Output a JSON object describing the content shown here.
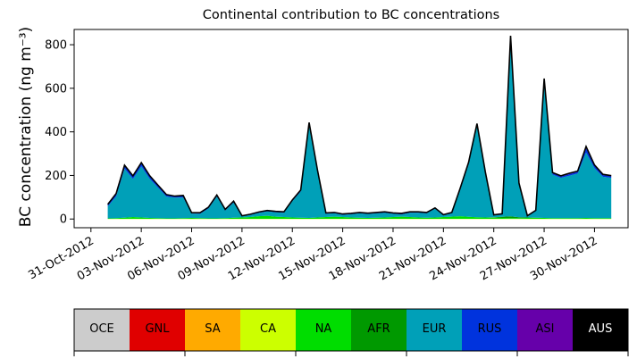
{
  "chart_data": {
    "type": "area",
    "title": "Continental contribution to BC concentrations",
    "ylabel": "BC concentration (ng m⁻³)",
    "xlabel": "",
    "x_range": [
      "2012-10-30",
      "2012-12-02"
    ],
    "ylim": [
      -40,
      870
    ],
    "yticks": [
      0,
      200,
      400,
      600,
      800
    ],
    "xticks": [
      {
        "date": "2012-10-31",
        "label": "31-Oct-2012"
      },
      {
        "date": "2012-11-03",
        "label": "03-Nov-2012"
      },
      {
        "date": "2012-11-06",
        "label": "06-Nov-2012"
      },
      {
        "date": "2012-11-09",
        "label": "09-Nov-2012"
      },
      {
        "date": "2012-11-12",
        "label": "12-Nov-2012"
      },
      {
        "date": "2012-11-15",
        "label": "15-Nov-2012"
      },
      {
        "date": "2012-11-18",
        "label": "18-Nov-2012"
      },
      {
        "date": "2012-11-21",
        "label": "21-Nov-2012"
      },
      {
        "date": "2012-11-24",
        "label": "24-Nov-2012"
      },
      {
        "date": "2012-11-27",
        "label": "27-Nov-2012"
      },
      {
        "date": "2012-11-30",
        "label": "30-Nov-2012"
      }
    ],
    "grid": false,
    "x": [
      "2012-11-01 00:00",
      "2012-11-01 12:00",
      "2012-11-02 00:00",
      "2012-11-02 12:00",
      "2012-11-03 00:00",
      "2012-11-03 12:00",
      "2012-11-04 00:00",
      "2012-11-04 12:00",
      "2012-11-05 00:00",
      "2012-11-05 12:00",
      "2012-11-06 00:00",
      "2012-11-06 12:00",
      "2012-11-07 00:00",
      "2012-11-07 12:00",
      "2012-11-08 00:00",
      "2012-11-08 12:00",
      "2012-11-09 00:00",
      "2012-11-09 12:00",
      "2012-11-10 00:00",
      "2012-11-10 12:00",
      "2012-11-11 00:00",
      "2012-11-11 12:00",
      "2012-11-12 00:00",
      "2012-11-12 12:00",
      "2012-11-13 00:00",
      "2012-11-13 12:00",
      "2012-11-14 00:00",
      "2012-11-14 12:00",
      "2012-11-15 00:00",
      "2012-11-15 12:00",
      "2012-11-16 00:00",
      "2012-11-16 12:00",
      "2012-11-17 00:00",
      "2012-11-17 12:00",
      "2012-11-18 00:00",
      "2012-11-18 12:00",
      "2012-11-19 00:00",
      "2012-11-19 12:00",
      "2012-11-20 00:00",
      "2012-11-20 12:00",
      "2012-11-21 00:00",
      "2012-11-21 12:00",
      "2012-11-22 00:00",
      "2012-11-22 12:00",
      "2012-11-23 00:00",
      "2012-11-23 12:00",
      "2012-11-24 00:00",
      "2012-11-24 12:00",
      "2012-11-25 00:00",
      "2012-11-25 12:00",
      "2012-11-26 00:00",
      "2012-11-26 12:00",
      "2012-11-27 00:00",
      "2012-11-27 12:00",
      "2012-11-28 00:00",
      "2012-11-28 12:00",
      "2012-11-29 00:00",
      "2012-11-29 12:00",
      "2012-11-30 00:00",
      "2012-11-30 12:00",
      "2012-12-01 00:00"
    ],
    "series": [
      {
        "name": "OCE",
        "color": "#cccccc",
        "values": [
          0,
          0,
          0,
          0,
          0,
          0,
          0,
          0,
          0,
          0,
          0,
          0,
          0,
          0,
          0,
          0,
          0,
          0,
          0,
          0,
          0,
          0,
          0,
          0,
          0,
          0,
          0,
          0,
          0,
          0,
          0,
          0,
          0,
          0,
          0,
          0,
          0,
          0,
          0,
          0,
          0,
          0,
          0,
          0,
          0,
          0,
          0,
          0,
          0,
          0,
          0,
          0,
          0,
          0,
          0,
          0,
          0,
          0,
          0,
          0,
          0
        ]
      },
      {
        "name": "GNL",
        "color": "#e00000",
        "values": [
          0,
          0,
          0,
          0,
          0,
          0,
          0,
          0,
          0,
          0,
          0,
          0,
          0,
          0,
          0,
          0,
          0,
          0,
          0,
          0,
          0,
          0,
          0,
          0,
          0,
          0,
          0,
          0,
          0,
          0,
          0,
          0,
          0,
          0,
          0,
          0,
          0,
          0,
          0,
          0,
          0,
          0,
          0,
          0,
          0,
          0,
          0,
          0,
          0,
          0,
          0,
          0,
          0,
          0,
          0,
          0,
          0,
          0,
          0,
          0,
          0
        ]
      },
      {
        "name": "SA",
        "color": "#ffaa00",
        "values": [
          0,
          0,
          0,
          0,
          0,
          0,
          0,
          0,
          0,
          0,
          0,
          0,
          0,
          0,
          0,
          0,
          0,
          0,
          0,
          0,
          0,
          0,
          0,
          0,
          0,
          0,
          0,
          0,
          0,
          0,
          0,
          0,
          0,
          0,
          0,
          0,
          0,
          0,
          0,
          0,
          0,
          0,
          0,
          0,
          0,
          0,
          0,
          0,
          0,
          0,
          0,
          0,
          0,
          0,
          0,
          0,
          0,
          0,
          0,
          0,
          0
        ]
      },
      {
        "name": "CA",
        "color": "#ccff00",
        "values": [
          1,
          1,
          1,
          1,
          1,
          1,
          1,
          1,
          1,
          1,
          1,
          1,
          1,
          1,
          1,
          1,
          1,
          1,
          1,
          1,
          1,
          1,
          1,
          1,
          1,
          1,
          1,
          1,
          1,
          1,
          1,
          1,
          1,
          1,
          1,
          1,
          1,
          1,
          1,
          1,
          1,
          1,
          1,
          1,
          1,
          1,
          1,
          1,
          1,
          1,
          1,
          1,
          1,
          1,
          1,
          1,
          1,
          1,
          1,
          1,
          1
        ]
      },
      {
        "name": "NA",
        "color": "#00dd00",
        "values": [
          2,
          3,
          5,
          8,
          6,
          4,
          3,
          2,
          2,
          3,
          4,
          3,
          2,
          2,
          3,
          5,
          6,
          8,
          12,
          14,
          10,
          8,
          6,
          5,
          4,
          6,
          8,
          10,
          8,
          6,
          5,
          4,
          5,
          6,
          8,
          10,
          8,
          6,
          5,
          6,
          8,
          10,
          12,
          9,
          7,
          6,
          5,
          4,
          3,
          3,
          4,
          5,
          4,
          3,
          3,
          3,
          3,
          4,
          3,
          3,
          3
        ]
      },
      {
        "name": "AFR",
        "color": "#009900",
        "values": [
          0,
          0,
          0,
          0,
          0,
          0,
          0,
          0,
          0,
          0,
          0,
          0,
          0,
          0,
          0,
          0,
          0,
          0,
          0,
          0,
          0,
          0,
          0,
          0,
          0,
          0,
          0,
          0,
          0,
          0,
          0,
          0,
          0,
          0,
          0,
          0,
          0,
          0,
          0,
          0,
          0,
          0,
          0,
          0,
          0,
          0,
          2,
          5,
          8,
          4,
          2,
          0,
          0,
          0,
          0,
          0,
          0,
          0,
          0,
          0,
          0
        ]
      },
      {
        "name": "EUR",
        "color": "#00a0b8",
        "values": [
          55,
          100,
          225,
          175,
          235,
          180,
          140,
          100,
          95,
          95,
          20,
          20,
          45,
          100,
          35,
          70,
          5,
          10,
          15,
          20,
          20,
          20,
          75,
          120,
          430,
          210,
          15,
          15,
          10,
          15,
          20,
          18,
          20,
          22,
          15,
          10,
          20,
          22,
          20,
          40,
          8,
          15,
          120,
          240,
          420,
          200,
          8,
          10,
          820,
          150,
          5,
          30,
          630,
          200,
          185,
          195,
          205,
          300,
          230,
          190,
          185
        ]
      },
      {
        "name": "RUS",
        "color": "#0033dd",
        "values": [
          8,
          12,
          14,
          12,
          15,
          12,
          10,
          8,
          6,
          8,
          3,
          4,
          5,
          6,
          4,
          5,
          2,
          2,
          3,
          3,
          3,
          3,
          4,
          5,
          6,
          5,
          3,
          3,
          3,
          3,
          3,
          3,
          3,
          3,
          3,
          4,
          3,
          3,
          3,
          3,
          2,
          3,
          6,
          8,
          8,
          6,
          2,
          3,
          6,
          5,
          2,
          3,
          6,
          6,
          6,
          7,
          7,
          20,
          10,
          8,
          7
        ]
      },
      {
        "name": "ASI",
        "color": "#6600aa",
        "values": [
          1,
          1,
          2,
          2,
          2,
          2,
          1,
          1,
          1,
          1,
          1,
          1,
          1,
          1,
          1,
          1,
          1,
          1,
          1,
          1,
          1,
          1,
          1,
          2,
          2,
          2,
          1,
          1,
          1,
          1,
          1,
          1,
          1,
          1,
          1,
          1,
          1,
          1,
          1,
          1,
          1,
          1,
          2,
          2,
          2,
          2,
          1,
          1,
          3,
          2,
          1,
          1,
          4,
          3,
          3,
          4,
          4,
          8,
          4,
          3,
          3
        ]
      },
      {
        "name": "AUS",
        "color": "#000000",
        "values": [
          0,
          0,
          0,
          0,
          0,
          0,
          0,
          0,
          0,
          0,
          0,
          0,
          0,
          0,
          0,
          0,
          0,
          0,
          0,
          0,
          0,
          0,
          0,
          0,
          0,
          0,
          0,
          0,
          0,
          0,
          0,
          0,
          0,
          0,
          0,
          0,
          0,
          0,
          0,
          0,
          0,
          0,
          0,
          0,
          0,
          0,
          0,
          0,
          0,
          0,
          0,
          0,
          0,
          0,
          0,
          0,
          0,
          0,
          0,
          0,
          0
        ]
      }
    ],
    "legend": {
      "placement": "bottom",
      "items": [
        {
          "label": "OCE",
          "color": "#cccccc",
          "text_color": "#000000"
        },
        {
          "label": "GNL",
          "color": "#e00000",
          "text_color": "#000000"
        },
        {
          "label": "SA",
          "color": "#ffaa00",
          "text_color": "#000000"
        },
        {
          "label": "CA",
          "color": "#ccff00",
          "text_color": "#000000"
        },
        {
          "label": "NA",
          "color": "#00dd00",
          "text_color": "#000000"
        },
        {
          "label": "AFR",
          "color": "#009900",
          "text_color": "#000000"
        },
        {
          "label": "EUR",
          "color": "#00a0b8",
          "text_color": "#000000"
        },
        {
          "label": "RUS",
          "color": "#0033dd",
          "text_color": "#000000"
        },
        {
          "label": "ASI",
          "color": "#6600aa",
          "text_color": "#000000"
        },
        {
          "label": "AUS",
          "color": "#000000",
          "text_color": "#ffffff"
        }
      ]
    }
  }
}
